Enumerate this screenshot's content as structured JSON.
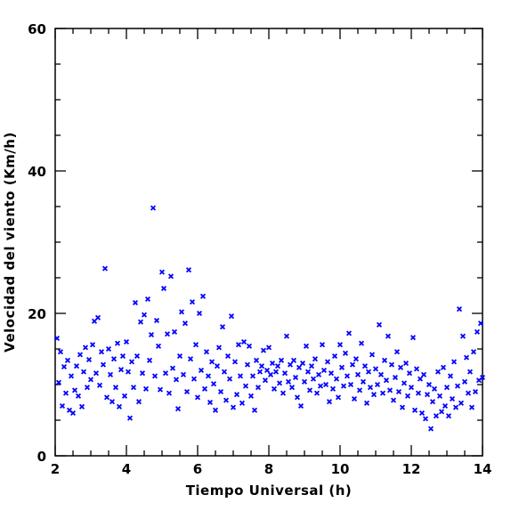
{
  "chart_data": {
    "type": "scatter",
    "title": "",
    "xlabel": "Tiempo Universal (h)",
    "ylabel": "Velocidad del viento (Km/h)",
    "xlim": [
      2,
      14
    ],
    "ylim": [
      0,
      60
    ],
    "xticks": [
      2,
      4,
      6,
      8,
      10,
      12,
      14
    ],
    "xtick_labels": [
      "2",
      "4",
      "6",
      "8",
      "10",
      "12",
      "14"
    ],
    "yticks": [
      0,
      20,
      40,
      60
    ],
    "ytick_labels": [
      "0",
      "20",
      "40",
      "60"
    ],
    "marker": "x",
    "marker_color": "#0000ff",
    "grid": false,
    "series": [
      {
        "points": [
          [
            2.05,
            16.5
          ],
          [
            2.1,
            10.3
          ],
          [
            2.15,
            14.6
          ],
          [
            2.2,
            7.0
          ],
          [
            2.25,
            12.5
          ],
          [
            2.3,
            8.8
          ],
          [
            2.35,
            13.4
          ],
          [
            2.4,
            6.4
          ],
          [
            2.45,
            11.2
          ],
          [
            2.5,
            6.0
          ],
          [
            2.55,
            9.2
          ],
          [
            2.6,
            12.6
          ],
          [
            2.65,
            8.4
          ],
          [
            2.7,
            14.2
          ],
          [
            2.75,
            6.9
          ],
          [
            2.8,
            11.8
          ],
          [
            2.85,
            15.2
          ],
          [
            2.9,
            9.6
          ],
          [
            2.95,
            13.5
          ],
          [
            3.0,
            10.7
          ],
          [
            3.05,
            15.6
          ],
          [
            3.1,
            18.9
          ],
          [
            3.15,
            11.6
          ],
          [
            3.2,
            19.4
          ],
          [
            3.25,
            9.9
          ],
          [
            3.3,
            14.6
          ],
          [
            3.35,
            12.8
          ],
          [
            3.4,
            26.3
          ],
          [
            3.45,
            8.2
          ],
          [
            3.5,
            15.0
          ],
          [
            3.55,
            11.4
          ],
          [
            3.6,
            7.6
          ],
          [
            3.65,
            13.6
          ],
          [
            3.7,
            9.6
          ],
          [
            3.75,
            15.8
          ],
          [
            3.8,
            6.9
          ],
          [
            3.85,
            12.1
          ],
          [
            3.9,
            14.0
          ],
          [
            3.95,
            8.4
          ],
          [
            4.0,
            16.0
          ],
          [
            4.05,
            11.8
          ],
          [
            4.1,
            5.3
          ],
          [
            4.15,
            13.2
          ],
          [
            4.2,
            9.6
          ],
          [
            4.25,
            21.5
          ],
          [
            4.3,
            14.0
          ],
          [
            4.35,
            7.6
          ],
          [
            4.4,
            18.8
          ],
          [
            4.45,
            11.6
          ],
          [
            4.5,
            19.8
          ],
          [
            4.55,
            9.4
          ],
          [
            4.6,
            22.0
          ],
          [
            4.65,
            13.4
          ],
          [
            4.7,
            17.0
          ],
          [
            4.75,
            34.8
          ],
          [
            4.8,
            11.2
          ],
          [
            4.85,
            19.0
          ],
          [
            4.9,
            15.4
          ],
          [
            4.95,
            9.3
          ],
          [
            5.0,
            25.8
          ],
          [
            5.05,
            23.5
          ],
          [
            5.1,
            11.6
          ],
          [
            5.15,
            17.1
          ],
          [
            5.2,
            8.8
          ],
          [
            5.25,
            25.2
          ],
          [
            5.3,
            12.3
          ],
          [
            5.35,
            17.4
          ],
          [
            5.4,
            10.7
          ],
          [
            5.45,
            6.6
          ],
          [
            5.5,
            14.0
          ],
          [
            5.55,
            20.2
          ],
          [
            5.6,
            11.4
          ],
          [
            5.65,
            18.6
          ],
          [
            5.7,
            9.0
          ],
          [
            5.75,
            26.1
          ],
          [
            5.8,
            13.6
          ],
          [
            5.85,
            21.6
          ],
          [
            5.9,
            10.8
          ],
          [
            5.95,
            15.6
          ],
          [
            6.0,
            8.2
          ],
          [
            6.05,
            20.0
          ],
          [
            6.1,
            12.0
          ],
          [
            6.15,
            22.4
          ],
          [
            6.2,
            9.4
          ],
          [
            6.25,
            14.6
          ],
          [
            6.3,
            11.2
          ],
          [
            6.35,
            7.5
          ],
          [
            6.4,
            13.2
          ],
          [
            6.45,
            10.1
          ],
          [
            6.5,
            6.4
          ],
          [
            6.55,
            12.6
          ],
          [
            6.6,
            15.2
          ],
          [
            6.65,
            9.0
          ],
          [
            6.7,
            18.1
          ],
          [
            6.75,
            11.8
          ],
          [
            6.8,
            7.8
          ],
          [
            6.85,
            14.0
          ],
          [
            6.9,
            10.8
          ],
          [
            6.95,
            19.6
          ],
          [
            7.0,
            6.8
          ],
          [
            7.05,
            13.2
          ],
          [
            7.1,
            8.6
          ],
          [
            7.15,
            15.6
          ],
          [
            7.2,
            11.2
          ],
          [
            7.25,
            7.4
          ],
          [
            7.3,
            16.0
          ],
          [
            7.35,
            9.8
          ],
          [
            7.4,
            12.8
          ],
          [
            7.45,
            15.4
          ],
          [
            7.5,
            8.4
          ],
          [
            7.55,
            11.2
          ],
          [
            7.6,
            6.4
          ],
          [
            7.65,
            13.4
          ],
          [
            7.7,
            9.6
          ],
          [
            7.75,
            11.8
          ],
          [
            7.8,
            12.6
          ],
          [
            7.85,
            14.8
          ],
          [
            7.9,
            10.6
          ],
          [
            7.95,
            12.0
          ],
          [
            8.0,
            15.2
          ],
          [
            8.05,
            11.4
          ],
          [
            8.1,
            13.0
          ],
          [
            8.15,
            9.4
          ],
          [
            8.2,
            11.8
          ],
          [
            8.25,
            12.6
          ],
          [
            8.3,
            10.2
          ],
          [
            8.35,
            13.4
          ],
          [
            8.4,
            8.8
          ],
          [
            8.45,
            11.6
          ],
          [
            8.5,
            16.8
          ],
          [
            8.55,
            10.4
          ],
          [
            8.6,
            12.8
          ],
          [
            8.65,
            9.6
          ],
          [
            8.7,
            13.4
          ],
          [
            8.75,
            11.0
          ],
          [
            8.8,
            8.2
          ],
          [
            8.85,
            12.4
          ],
          [
            8.9,
            7.0
          ],
          [
            8.95,
            13.0
          ],
          [
            9.0,
            10.4
          ],
          [
            9.05,
            15.4
          ],
          [
            9.1,
            11.8
          ],
          [
            9.15,
            9.2
          ],
          [
            9.2,
            12.6
          ],
          [
            9.25,
            10.8
          ],
          [
            9.3,
            13.6
          ],
          [
            9.35,
            8.8
          ],
          [
            9.4,
            11.4
          ],
          [
            9.45,
            9.8
          ],
          [
            9.5,
            15.6
          ],
          [
            9.55,
            12.0
          ],
          [
            9.6,
            10.0
          ],
          [
            9.65,
            13.2
          ],
          [
            9.7,
            7.6
          ],
          [
            9.75,
            11.6
          ],
          [
            9.8,
            9.4
          ],
          [
            9.85,
            14.0
          ],
          [
            9.9,
            10.8
          ],
          [
            9.95,
            8.2
          ],
          [
            10.0,
            15.6
          ],
          [
            10.05,
            12.4
          ],
          [
            10.1,
            9.8
          ],
          [
            10.15,
            14.4
          ],
          [
            10.2,
            11.2
          ],
          [
            10.25,
            17.2
          ],
          [
            10.3,
            10.0
          ],
          [
            10.35,
            12.8
          ],
          [
            10.4,
            8.0
          ],
          [
            10.45,
            13.6
          ],
          [
            10.5,
            11.4
          ],
          [
            10.55,
            9.2
          ],
          [
            10.6,
            15.8
          ],
          [
            10.65,
            10.4
          ],
          [
            10.7,
            12.6
          ],
          [
            10.75,
            7.4
          ],
          [
            10.8,
            11.8
          ],
          [
            10.85,
            9.6
          ],
          [
            10.9,
            14.2
          ],
          [
            10.95,
            8.6
          ],
          [
            11.0,
            12.2
          ],
          [
            11.05,
            10.0
          ],
          [
            11.1,
            18.4
          ],
          [
            11.15,
            11.4
          ],
          [
            11.2,
            8.8
          ],
          [
            11.25,
            13.4
          ],
          [
            11.3,
            10.6
          ],
          [
            11.35,
            16.8
          ],
          [
            11.4,
            9.2
          ],
          [
            11.45,
            12.8
          ],
          [
            11.5,
            7.8
          ],
          [
            11.55,
            11.0
          ],
          [
            11.6,
            14.6
          ],
          [
            11.65,
            9.0
          ],
          [
            11.7,
            12.4
          ],
          [
            11.75,
            6.8
          ],
          [
            11.8,
            10.2
          ],
          [
            11.85,
            13.0
          ],
          [
            11.9,
            8.4
          ],
          [
            11.95,
            11.6
          ],
          [
            12.0,
            9.6
          ],
          [
            12.05,
            16.6
          ],
          [
            12.1,
            6.4
          ],
          [
            12.15,
            12.2
          ],
          [
            12.2,
            8.8
          ],
          [
            12.25,
            10.8
          ],
          [
            12.3,
            6.0
          ],
          [
            12.35,
            11.4
          ],
          [
            12.4,
            5.2
          ],
          [
            12.45,
            8.6
          ],
          [
            12.5,
            10.0
          ],
          [
            12.55,
            3.8
          ],
          [
            12.6,
            7.6
          ],
          [
            12.65,
            9.4
          ],
          [
            12.7,
            5.6
          ],
          [
            12.75,
            11.8
          ],
          [
            12.8,
            8.4
          ],
          [
            12.85,
            6.2
          ],
          [
            12.9,
            12.4
          ],
          [
            12.95,
            7.0
          ],
          [
            13.0,
            9.6
          ],
          [
            13.05,
            5.6
          ],
          [
            13.1,
            11.2
          ],
          [
            13.15,
            8.0
          ],
          [
            13.2,
            13.2
          ],
          [
            13.25,
            6.8
          ],
          [
            13.3,
            9.8
          ],
          [
            13.35,
            20.6
          ],
          [
            13.4,
            7.4
          ],
          [
            13.45,
            16.8
          ],
          [
            13.5,
            10.4
          ],
          [
            13.55,
            13.8
          ],
          [
            13.6,
            8.8
          ],
          [
            13.65,
            11.8
          ],
          [
            13.7,
            6.8
          ],
          [
            13.75,
            14.6
          ],
          [
            13.8,
            9.0
          ],
          [
            13.85,
            17.4
          ],
          [
            13.9,
            10.6
          ],
          [
            13.95,
            18.6
          ],
          [
            14.0,
            11.0
          ]
        ]
      }
    ]
  }
}
